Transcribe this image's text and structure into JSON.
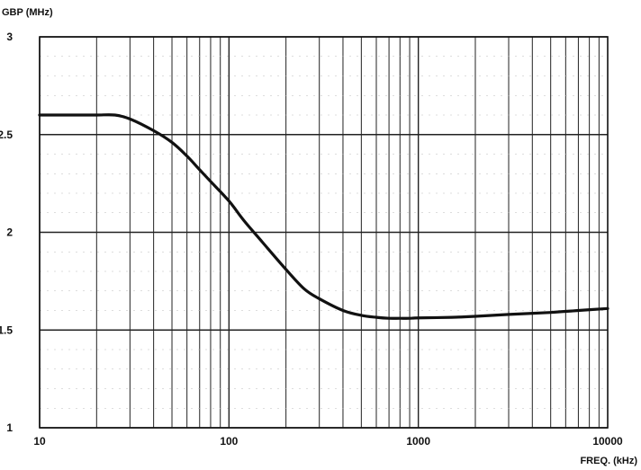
{
  "chart_data": {
    "type": "line",
    "ylabel": "GBP (MHz)",
    "xlabel": "FREQ. (kHz)",
    "xscale": "log",
    "xlim": [
      10,
      10000
    ],
    "ylim": [
      1,
      3
    ],
    "x_tick_labels": [
      {
        "value": 10,
        "label": "10"
      },
      {
        "value": 100,
        "label": "100"
      },
      {
        "value": 1000,
        "label": "1000"
      },
      {
        "value": 10000,
        "label": "10000"
      }
    ],
    "y_tick_labels": [
      {
        "value": 1,
        "label": "1"
      },
      {
        "value": 1.5,
        "label": "1.5"
      },
      {
        "value": 2,
        "label": "2"
      },
      {
        "value": 2.5,
        "label": "2.5"
      },
      {
        "value": 3,
        "label": "3"
      }
    ],
    "grid": true,
    "line_color": "#111111",
    "series": [
      {
        "x": [
          10,
          15,
          20,
          25,
          30,
          40,
          50,
          60,
          70,
          80,
          100,
          120,
          150,
          200,
          250,
          300,
          400,
          500,
          600,
          700,
          800,
          900,
          1000,
          1500,
          2000,
          3000,
          5000,
          7000,
          10000
        ],
        "y": [
          2.6,
          2.6,
          2.6,
          2.6,
          2.58,
          2.52,
          2.46,
          2.39,
          2.32,
          2.26,
          2.16,
          2.06,
          1.95,
          1.81,
          1.71,
          1.66,
          1.6,
          1.575,
          1.565,
          1.56,
          1.56,
          1.56,
          1.562,
          1.565,
          1.57,
          1.58,
          1.59,
          1.6,
          1.61
        ]
      }
    ]
  }
}
